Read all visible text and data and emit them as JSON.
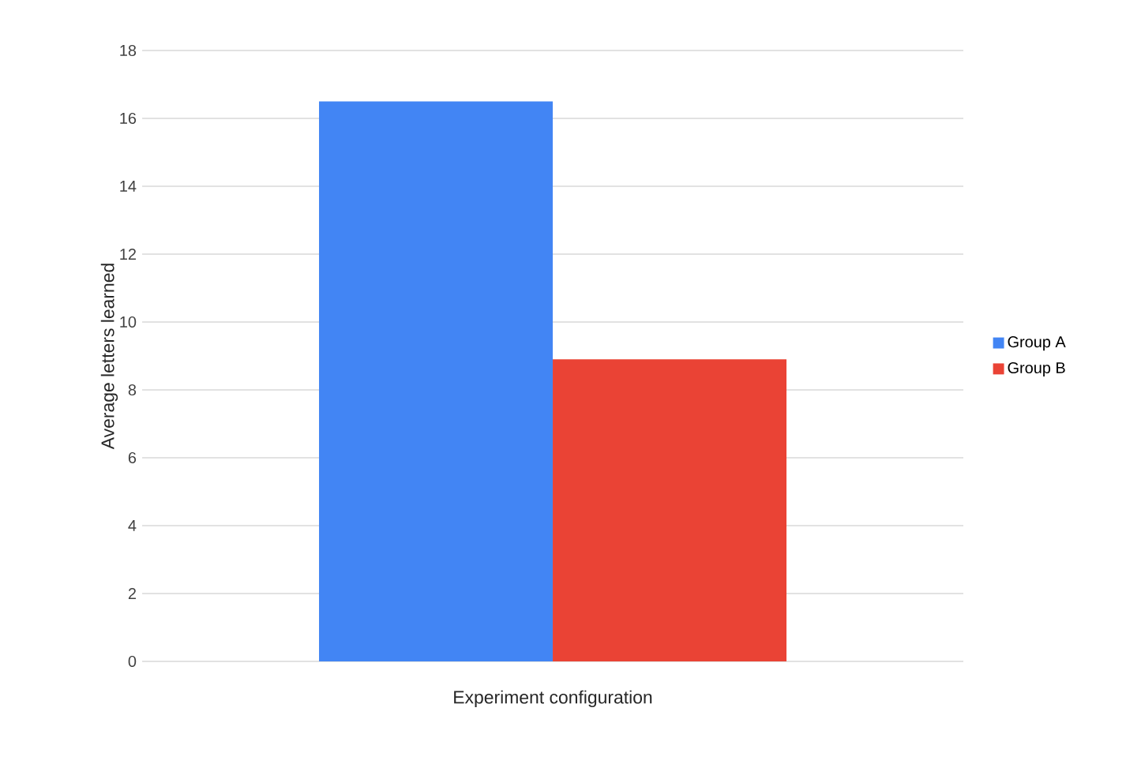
{
  "chart_data": {
    "type": "bar",
    "xlabel": "Experiment configuration",
    "ylabel": "Average letters learned",
    "categories": [
      null
    ],
    "series": [
      {
        "name": "Group A",
        "color": "#4285f4",
        "values": [
          16.5
        ]
      },
      {
        "name": "Group B",
        "color": "#ea4335",
        "values": [
          8.9
        ]
      }
    ],
    "ylim": [
      0,
      18
    ],
    "yticks": [
      0,
      2,
      4,
      6,
      8,
      10,
      12,
      14,
      16,
      18
    ],
    "grid": "y",
    "legend": "right"
  }
}
